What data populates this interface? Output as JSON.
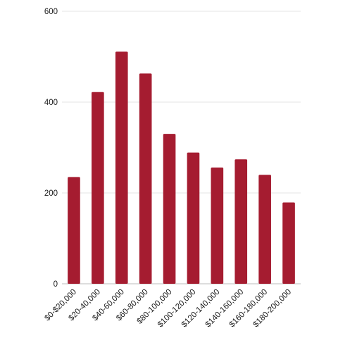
{
  "chart_data": {
    "type": "bar",
    "title": "",
    "xlabel": "",
    "ylabel": "",
    "categories": [
      "$0-$20,000",
      "$20-40,000",
      "$40-60,000",
      "$60-80,000",
      "$80-100,000",
      "$100-120,000",
      "$120-140,000",
      "$140-160,000",
      "$160-180,000",
      "$180-200,000"
    ],
    "values": [
      235,
      422,
      511,
      463,
      330,
      289,
      256,
      274,
      240,
      179
    ],
    "ylim": [
      0,
      600
    ],
    "yticks": [
      "0",
      "200",
      "400",
      "600"
    ],
    "grid": true,
    "legend": "none",
    "colors": {
      "bar": "#a51c30"
    }
  }
}
